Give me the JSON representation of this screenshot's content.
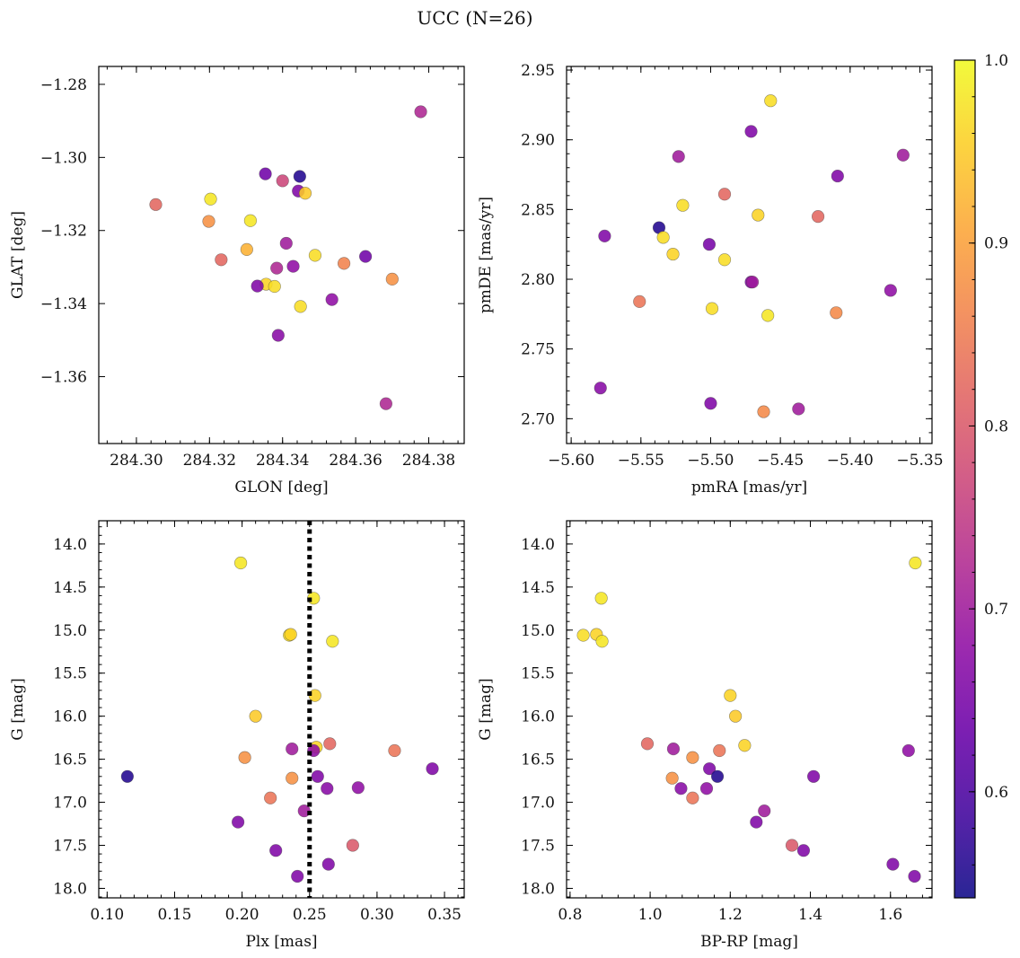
{
  "figure_title": "UCC (N=26)",
  "chart_data": [
    {
      "type": "scatter",
      "xlabel": "GLON [deg]",
      "ylabel": "GLAT [deg]",
      "xlim": [
        284.2897,
        284.3897
      ],
      "ylim": [
        -1.3783,
        -1.2751
      ],
      "x_ticks": [
        284.3,
        284.32,
        284.34,
        284.36,
        284.38
      ],
      "x_tick_labels": [
        "284.30",
        "284.32",
        "284.34",
        "284.36",
        "284.38"
      ],
      "y_ticks": [
        -1.28,
        -1.3,
        -1.32,
        -1.34,
        -1.36
      ],
      "y_tick_labels": [
        "−1.28",
        "−1.30",
        "−1.32",
        "−1.34",
        "−1.36"
      ],
      "points": [
        {
          "x": 284.3778,
          "y": -1.2875,
          "c": 0.72
        },
        {
          "x": 284.3353,
          "y": -1.3045,
          "c": 0.64
        },
        {
          "x": 284.3447,
          "y": -1.3052,
          "c": 0.56
        },
        {
          "x": 284.34,
          "y": -1.3064,
          "c": 0.77
        },
        {
          "x": 284.3443,
          "y": -1.3092,
          "c": 0.66
        },
        {
          "x": 284.3462,
          "y": -1.3098,
          "c": 0.95
        },
        {
          "x": 284.3053,
          "y": -1.3129,
          "c": 0.82
        },
        {
          "x": 284.3203,
          "y": -1.3114,
          "c": 0.98
        },
        {
          "x": 284.3312,
          "y": -1.3173,
          "c": 0.98
        },
        {
          "x": 284.3198,
          "y": -1.3175,
          "c": 0.88
        },
        {
          "x": 284.341,
          "y": -1.3235,
          "c": 0.7
        },
        {
          "x": 284.3302,
          "y": -1.3252,
          "c": 0.92
        },
        {
          "x": 284.3489,
          "y": -1.3268,
          "c": 0.97
        },
        {
          "x": 284.3627,
          "y": -1.3271,
          "c": 0.64
        },
        {
          "x": 284.3232,
          "y": -1.328,
          "c": 0.82
        },
        {
          "x": 284.3568,
          "y": -1.329,
          "c": 0.86
        },
        {
          "x": 284.3384,
          "y": -1.3303,
          "c": 0.72
        },
        {
          "x": 284.3429,
          "y": -1.3298,
          "c": 0.68
        },
        {
          "x": 284.37,
          "y": -1.3333,
          "c": 0.88
        },
        {
          "x": 284.3355,
          "y": -1.3347,
          "c": 0.96
        },
        {
          "x": 284.3378,
          "y": -1.3353,
          "c": 0.97
        },
        {
          "x": 284.3331,
          "y": -1.3352,
          "c": 0.66
        },
        {
          "x": 284.3535,
          "y": -1.3389,
          "c": 0.68
        },
        {
          "x": 284.3449,
          "y": -1.3408,
          "c": 0.97
        },
        {
          "x": 284.3388,
          "y": -1.3487,
          "c": 0.67
        },
        {
          "x": 284.3683,
          "y": -1.3674,
          "c": 0.72
        }
      ]
    },
    {
      "type": "scatter",
      "xlabel": "pmRA [mas/yr]",
      "ylabel": "pmDE [mas/yr]",
      "xlim": [
        -5.6033,
        -5.3413
      ],
      "ylim": [
        2.6822,
        2.9526
      ],
      "x_ticks": [
        -5.6,
        -5.55,
        -5.5,
        -5.45,
        -5.4,
        -5.35
      ],
      "x_tick_labels": [
        "−5.60",
        "−5.55",
        "−5.50",
        "−5.45",
        "−5.40",
        "−5.35"
      ],
      "y_ticks": [
        2.7,
        2.75,
        2.8,
        2.85,
        2.9,
        2.95
      ],
      "y_tick_labels": [
        "2.70",
        "2.75",
        "2.80",
        "2.85",
        "2.90",
        "2.95"
      ],
      "points": [
        {
          "x": -5.457,
          "y": 2.928,
          "c": 0.97
        },
        {
          "x": -5.471,
          "y": 2.906,
          "c": 0.66
        },
        {
          "x": -5.523,
          "y": 2.888,
          "c": 0.7
        },
        {
          "x": -5.362,
          "y": 2.889,
          "c": 0.7
        },
        {
          "x": -5.409,
          "y": 2.874,
          "c": 0.66
        },
        {
          "x": -5.49,
          "y": 2.861,
          "c": 0.82
        },
        {
          "x": -5.52,
          "y": 2.853,
          "c": 0.97
        },
        {
          "x": -5.466,
          "y": 2.846,
          "c": 0.96
        },
        {
          "x": -5.423,
          "y": 2.845,
          "c": 0.82
        },
        {
          "x": -5.537,
          "y": 2.837,
          "c": 0.56
        },
        {
          "x": -5.576,
          "y": 2.831,
          "c": 0.66
        },
        {
          "x": -5.534,
          "y": 2.83,
          "c": 0.97
        },
        {
          "x": -5.501,
          "y": 2.825,
          "c": 0.65
        },
        {
          "x": -5.527,
          "y": 2.818,
          "c": 0.96
        },
        {
          "x": -5.49,
          "y": 2.814,
          "c": 0.97
        },
        {
          "x": -5.471,
          "y": 2.798,
          "c": 0.66
        },
        {
          "x": -5.47,
          "y": 2.798,
          "c": 0.7
        },
        {
          "x": -5.371,
          "y": 2.792,
          "c": 0.68
        },
        {
          "x": -5.551,
          "y": 2.784,
          "c": 0.84
        },
        {
          "x": -5.499,
          "y": 2.779,
          "c": 0.97
        },
        {
          "x": -5.41,
          "y": 2.776,
          "c": 0.87
        },
        {
          "x": -5.459,
          "y": 2.774,
          "c": 0.98
        },
        {
          "x": -5.579,
          "y": 2.722,
          "c": 0.67
        },
        {
          "x": -5.5,
          "y": 2.711,
          "c": 0.66
        },
        {
          "x": -5.437,
          "y": 2.707,
          "c": 0.7
        },
        {
          "x": -5.462,
          "y": 2.705,
          "c": 0.87
        }
      ]
    },
    {
      "type": "scatter",
      "xlabel": "Plx [mas]",
      "ylabel": "G [mag]",
      "xlim": [
        0.0938,
        0.3646
      ],
      "ylim": [
        18.11,
        13.73
      ],
      "y_inverted": true,
      "vline": {
        "x": 0.25,
        "style": "dotted"
      },
      "x_ticks": [
        0.1,
        0.15,
        0.2,
        0.25,
        0.3,
        0.35
      ],
      "x_tick_labels": [
        "0.10",
        "0.15",
        "0.20",
        "0.25",
        "0.30",
        "0.35"
      ],
      "y_ticks": [
        14.0,
        14.5,
        15.0,
        15.5,
        16.0,
        16.5,
        17.0,
        17.5,
        18.0
      ],
      "y_tick_labels": [
        "14.0",
        "14.5",
        "15.0",
        "15.5",
        "16.0",
        "16.5",
        "17.0",
        "17.5",
        "18.0"
      ],
      "points": [
        {
          "x": 0.199,
          "y": 14.22,
          "c": 0.98
        },
        {
          "x": 0.253,
          "y": 14.63,
          "c": 0.98
        },
        {
          "x": 0.235,
          "y": 15.06,
          "c": 0.97
        },
        {
          "x": 0.236,
          "y": 15.05,
          "c": 0.96
        },
        {
          "x": 0.267,
          "y": 15.13,
          "c": 0.98
        },
        {
          "x": 0.254,
          "y": 15.76,
          "c": 0.96
        },
        {
          "x": 0.21,
          "y": 16.0,
          "c": 0.95
        },
        {
          "x": 0.237,
          "y": 16.38,
          "c": 0.7
        },
        {
          "x": 0.255,
          "y": 16.36,
          "c": 0.96
        },
        {
          "x": 0.253,
          "y": 16.4,
          "c": 0.68
        },
        {
          "x": 0.265,
          "y": 16.32,
          "c": 0.82
        },
        {
          "x": 0.313,
          "y": 16.4,
          "c": 0.84
        },
        {
          "x": 0.202,
          "y": 16.48,
          "c": 0.88
        },
        {
          "x": 0.341,
          "y": 16.61,
          "c": 0.66
        },
        {
          "x": 0.115,
          "y": 16.7,
          "c": 0.56
        },
        {
          "x": 0.256,
          "y": 16.7,
          "c": 0.66
        },
        {
          "x": 0.237,
          "y": 16.72,
          "c": 0.88
        },
        {
          "x": 0.263,
          "y": 16.84,
          "c": 0.67
        },
        {
          "x": 0.286,
          "y": 16.83,
          "c": 0.68
        },
        {
          "x": 0.221,
          "y": 16.95,
          "c": 0.84
        },
        {
          "x": 0.246,
          "y": 17.1,
          "c": 0.7
        },
        {
          "x": 0.197,
          "y": 17.23,
          "c": 0.66
        },
        {
          "x": 0.282,
          "y": 17.5,
          "c": 0.8
        },
        {
          "x": 0.225,
          "y": 17.56,
          "c": 0.66
        },
        {
          "x": 0.264,
          "y": 17.72,
          "c": 0.66
        },
        {
          "x": 0.241,
          "y": 17.86,
          "c": 0.66
        }
      ]
    },
    {
      "type": "scatter",
      "xlabel": "BP-RP [mag]",
      "ylabel": "G [mag]",
      "xlim": [
        0.7913,
        1.7037
      ],
      "ylim": [
        18.11,
        13.73
      ],
      "y_inverted": true,
      "x_ticks": [
        0.8,
        1.0,
        1.2,
        1.4,
        1.6
      ],
      "x_tick_labels": [
        "0.8",
        "1.0",
        "1.2",
        "1.4",
        "1.6"
      ],
      "y_ticks": [
        14.0,
        14.5,
        15.0,
        15.5,
        16.0,
        16.5,
        17.0,
        17.5,
        18.0
      ],
      "y_tick_labels": [
        "14.0",
        "14.5",
        "15.0",
        "15.5",
        "16.0",
        "16.5",
        "17.0",
        "17.5",
        "18.0"
      ],
      "points": [
        {
          "x": 1.662,
          "y": 14.22,
          "c": 0.98
        },
        {
          "x": 0.878,
          "y": 14.63,
          "c": 0.98
        },
        {
          "x": 0.833,
          "y": 15.06,
          "c": 0.97
        },
        {
          "x": 0.866,
          "y": 15.05,
          "c": 0.96
        },
        {
          "x": 0.88,
          "y": 15.13,
          "c": 0.98
        },
        {
          "x": 1.2,
          "y": 15.76,
          "c": 0.96
        },
        {
          "x": 1.213,
          "y": 16.0,
          "c": 0.95
        },
        {
          "x": 0.993,
          "y": 16.32,
          "c": 0.82
        },
        {
          "x": 1.058,
          "y": 16.38,
          "c": 0.7
        },
        {
          "x": 1.173,
          "y": 16.4,
          "c": 0.84
        },
        {
          "x": 1.236,
          "y": 16.34,
          "c": 0.96
        },
        {
          "x": 1.645,
          "y": 16.4,
          "c": 0.68
        },
        {
          "x": 1.106,
          "y": 16.48,
          "c": 0.88
        },
        {
          "x": 1.148,
          "y": 16.61,
          "c": 0.66
        },
        {
          "x": 1.168,
          "y": 16.7,
          "c": 0.56
        },
        {
          "x": 1.408,
          "y": 16.7,
          "c": 0.66
        },
        {
          "x": 1.055,
          "y": 16.72,
          "c": 0.88
        },
        {
          "x": 1.077,
          "y": 16.84,
          "c": 0.67
        },
        {
          "x": 1.141,
          "y": 16.84,
          "c": 0.68
        },
        {
          "x": 1.106,
          "y": 16.95,
          "c": 0.84
        },
        {
          "x": 1.285,
          "y": 17.1,
          "c": 0.7
        },
        {
          "x": 1.265,
          "y": 17.23,
          "c": 0.66
        },
        {
          "x": 1.354,
          "y": 17.5,
          "c": 0.8
        },
        {
          "x": 1.383,
          "y": 17.56,
          "c": 0.66
        },
        {
          "x": 1.606,
          "y": 17.72,
          "c": 0.66
        },
        {
          "x": 1.66,
          "y": 17.86,
          "c": 0.66
        }
      ]
    }
  ],
  "colorbar": {
    "colormap": "plasma",
    "range": [
      0.542,
      1.0
    ],
    "ticks": [
      0.6,
      0.7,
      0.8,
      0.9,
      1.0
    ],
    "tick_labels": [
      "0.6",
      "0.7",
      "0.8",
      "0.9",
      "1.0"
    ]
  }
}
